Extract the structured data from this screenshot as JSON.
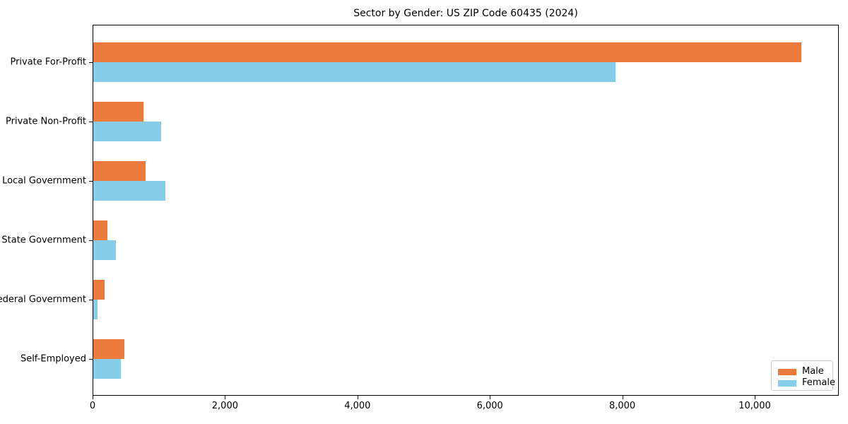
{
  "chart_data": {
    "type": "bar",
    "orientation": "horizontal",
    "title": "Sector by Gender: US ZIP Code 60435 (2024)",
    "categories": [
      "Private For-Profit",
      "Private Non-Profit",
      "Local Government",
      "State Government",
      "Federal Government",
      "Self-Employed"
    ],
    "series": [
      {
        "name": "Male",
        "color": "#ec7a3c",
        "values": [
          10700,
          770,
          800,
          220,
          180,
          480
        ]
      },
      {
        "name": "Female",
        "color": "#85cde8",
        "values": [
          7900,
          1040,
          1100,
          350,
          80,
          430
        ]
      }
    ],
    "xlabel": "",
    "ylabel": "",
    "xlim": [
      0,
      11270
    ],
    "xticks": [
      0,
      2000,
      4000,
      6000,
      8000,
      10000
    ],
    "xtick_labels": [
      "0",
      "2,000",
      "4,000",
      "6,000",
      "8,000",
      "10,000"
    ],
    "legend_position": "lower right",
    "grid": false,
    "spine_color": "#000000",
    "background_color": "#ffffff"
  }
}
